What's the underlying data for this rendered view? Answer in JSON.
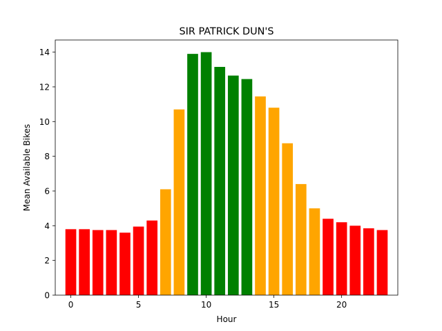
{
  "chart_data": {
    "type": "bar",
    "title": "SIR PATRICK DUN'S",
    "xlabel": "Hour",
    "ylabel": "Mean Available Bikes",
    "x": [
      0,
      1,
      2,
      3,
      4,
      5,
      6,
      7,
      8,
      9,
      10,
      11,
      12,
      13,
      14,
      15,
      16,
      17,
      18,
      19,
      20,
      21,
      22,
      23
    ],
    "values": [
      3.8,
      3.8,
      3.75,
      3.75,
      3.6,
      3.95,
      4.3,
      6.1,
      10.7,
      13.9,
      14.0,
      13.15,
      12.65,
      12.45,
      11.45,
      10.8,
      8.75,
      6.4,
      5.0,
      4.4,
      4.2,
      4.0,
      3.85,
      3.75
    ],
    "colors": [
      "red",
      "red",
      "red",
      "red",
      "red",
      "red",
      "red",
      "orange",
      "orange",
      "green",
      "green",
      "green",
      "green",
      "green",
      "orange",
      "orange",
      "orange",
      "orange",
      "orange",
      "red",
      "red",
      "red",
      "red",
      "red"
    ],
    "xlim": [
      -1.15,
      24.15
    ],
    "ylim": [
      0,
      14.7
    ],
    "xticks": [
      0,
      5,
      10,
      15,
      20
    ],
    "yticks": [
      0,
      2,
      4,
      6,
      8,
      10,
      12,
      14
    ],
    "grid": false,
    "palette": {
      "red": "#ff0000",
      "orange": "#ffa500",
      "green": "#008000"
    }
  }
}
